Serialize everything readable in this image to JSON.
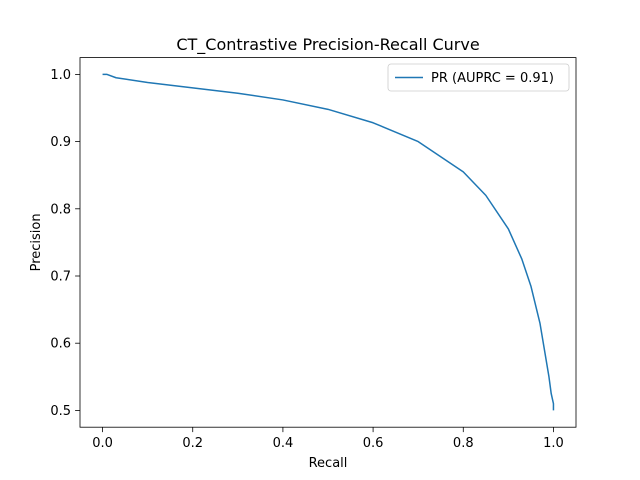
{
  "chart_data": {
    "type": "line",
    "title": "CT_Contrastive Precision-Recall Curve",
    "xlabel": "Recall",
    "ylabel": "Precision",
    "xlim": [
      -0.05,
      1.05
    ],
    "ylim": [
      0.475,
      1.025
    ],
    "xticks": [
      0.0,
      0.2,
      0.4,
      0.6,
      0.8,
      1.0
    ],
    "xtick_labels": [
      "0.0",
      "0.2",
      "0.4",
      "0.6",
      "0.8",
      "1.0"
    ],
    "yticks": [
      0.5,
      0.6,
      0.7,
      0.8,
      0.9,
      1.0
    ],
    "ytick_labels": [
      "0.5",
      "0.6",
      "0.7",
      "0.8",
      "0.9",
      "1.0"
    ],
    "grid": false,
    "legend_position": "upper right",
    "series": [
      {
        "name": "PR (AUPRC = 0.91)",
        "color": "#1f77b4",
        "x": [
          0.0,
          0.01,
          0.03,
          0.1,
          0.2,
          0.3,
          0.4,
          0.5,
          0.6,
          0.7,
          0.8,
          0.85,
          0.9,
          0.93,
          0.95,
          0.97,
          0.98,
          0.99,
          0.995,
          1.0,
          1.0
        ],
        "y": [
          1.0,
          1.0,
          0.995,
          0.988,
          0.98,
          0.972,
          0.962,
          0.948,
          0.928,
          0.9,
          0.855,
          0.82,
          0.77,
          0.725,
          0.685,
          0.63,
          0.59,
          0.55,
          0.525,
          0.51,
          0.5
        ]
      }
    ]
  }
}
